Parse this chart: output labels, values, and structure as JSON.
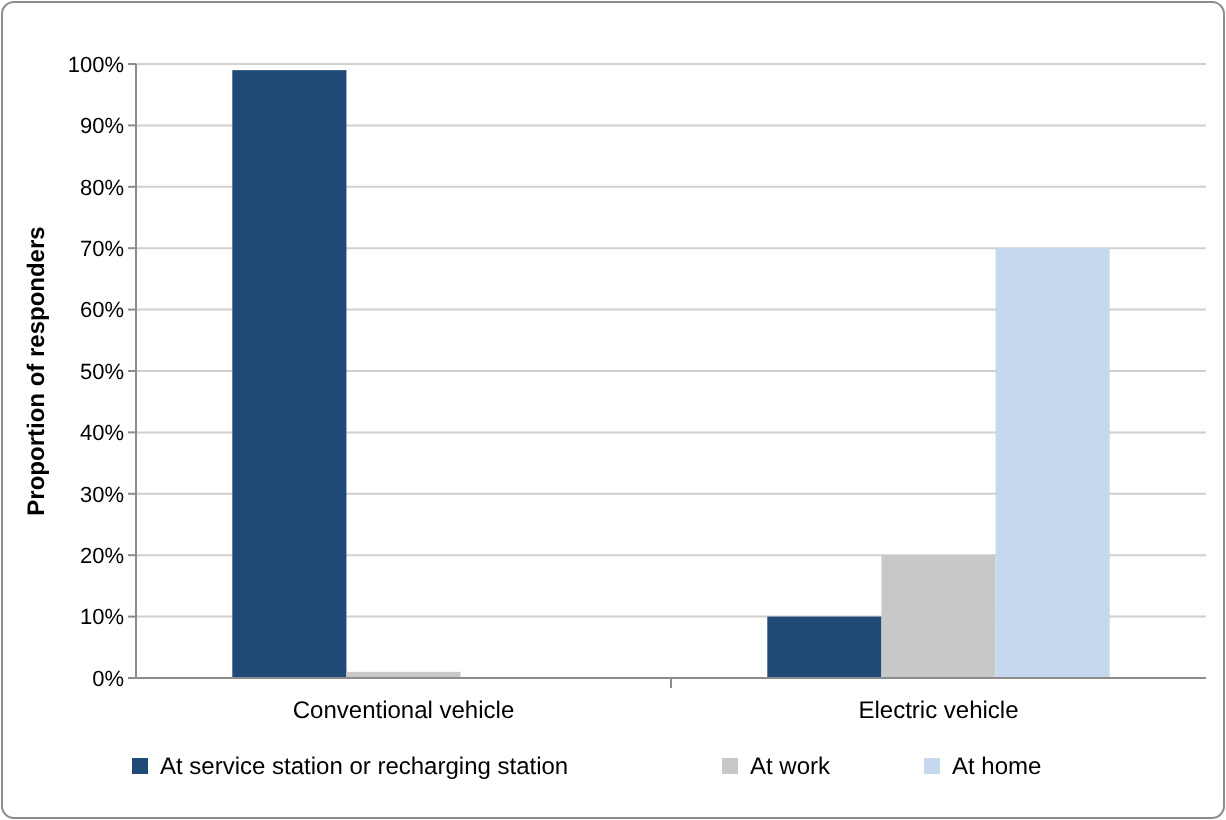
{
  "chart_data": {
    "type": "bar",
    "ylabel": "Proportion of responders",
    "categories": [
      "Conventional vehicle",
      "Electric vehicle"
    ],
    "series": [
      {
        "name": "At service station or recharging station",
        "color": "#1f4a78",
        "values": [
          99,
          10
        ]
      },
      {
        "name": "At work",
        "color": "#c8c8c8",
        "values": [
          1,
          20
        ]
      },
      {
        "name": "At home",
        "color": "#c5d8ed",
        "values": [
          0,
          70
        ]
      }
    ],
    "ylim": [
      0,
      100
    ],
    "yticks": [
      {
        "value": 0,
        "label": "0%"
      },
      {
        "value": 10,
        "label": "10%"
      },
      {
        "value": 20,
        "label": "20%"
      },
      {
        "value": 30,
        "label": "30%"
      },
      {
        "value": 40,
        "label": "40%"
      },
      {
        "value": 50,
        "label": "50%"
      },
      {
        "value": 60,
        "label": "60%"
      },
      {
        "value": 70,
        "label": "70%"
      },
      {
        "value": 80,
        "label": "80%"
      },
      {
        "value": 90,
        "label": "90%"
      },
      {
        "value": 100,
        "label": "100%"
      }
    ],
    "grid": "y",
    "legend": "bottom"
  }
}
